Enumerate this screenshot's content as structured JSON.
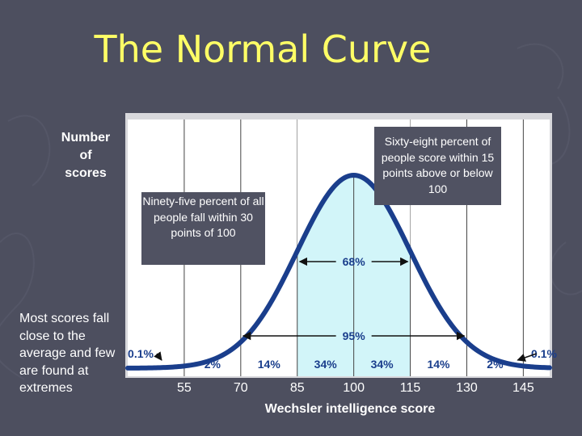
{
  "title": "The Normal Curve",
  "y_axis_label": [
    "Number",
    "of",
    "scores"
  ],
  "side_note": "Most scores fall close to the average and few are found at extremes",
  "callouts": {
    "ninety_five": "Ninety-five percent of all people fall within 30 points of 100",
    "sixty_eight": "Sixty-eight percent of people score within 15 points above or below 100"
  },
  "colors": {
    "background": "#4d4f5f",
    "title": "#ffff66",
    "curve": "#1a3e8c",
    "shade": "#d2f5f9",
    "plot_bg": "#ffffff",
    "label_text": "#1a3e8c"
  },
  "chart_data": {
    "type": "area",
    "title": "The Normal Curve",
    "xlabel": "Wechsler intelligence score",
    "ylabel": "Number of scores",
    "mean": 100,
    "sd": 15,
    "xlim": [
      40,
      152
    ],
    "x_ticks": [
      "55",
      "70",
      "85",
      "100",
      "115",
      "130",
      "145"
    ],
    "shaded_range": [
      85,
      115
    ],
    "grid": true,
    "segment_percents": [
      {
        "label": "0.1%",
        "range": [
          40,
          55
        ]
      },
      {
        "label": "2%",
        "range": [
          55,
          70
        ]
      },
      {
        "label": "14%",
        "range": [
          70,
          85
        ]
      },
      {
        "label": "34%",
        "range": [
          85,
          100
        ]
      },
      {
        "label": "34%",
        "range": [
          100,
          115
        ]
      },
      {
        "label": "14%",
        "range": [
          115,
          130
        ]
      },
      {
        "label": "2%",
        "range": [
          130,
          145
        ]
      },
      {
        "label": "0.1%",
        "range": [
          145,
          152
        ]
      }
    ],
    "range_labels": [
      {
        "label": "68%",
        "range": [
          85,
          115
        ]
      },
      {
        "label": "95%",
        "range": [
          70,
          130
        ]
      }
    ]
  }
}
